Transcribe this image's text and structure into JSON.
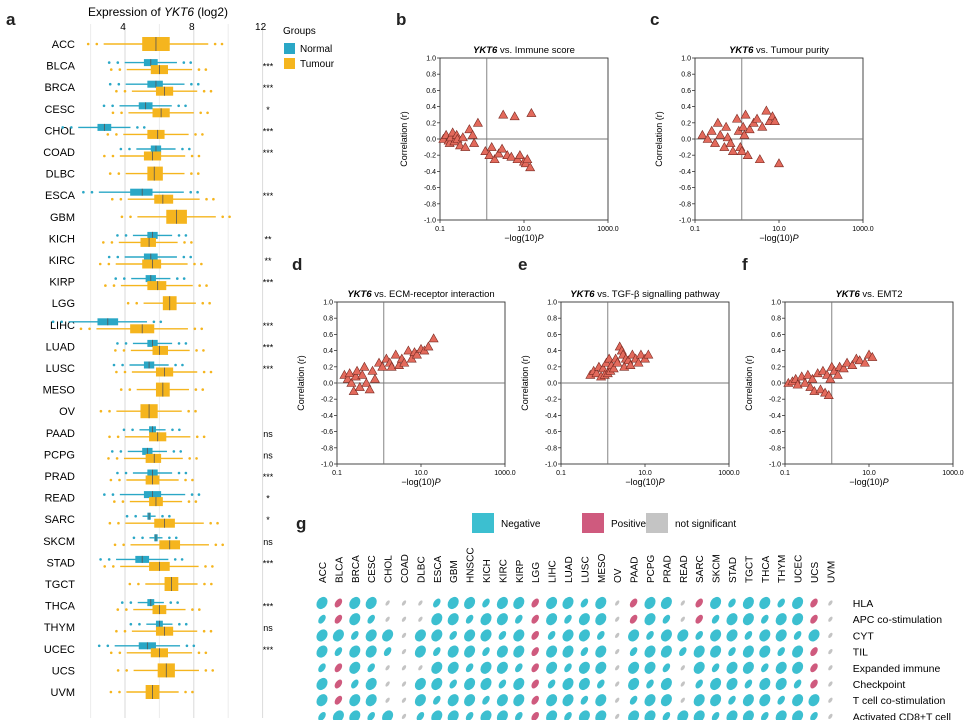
{
  "panel_labels": [
    "a",
    "b",
    "c",
    "d",
    "e",
    "f",
    "g"
  ],
  "panel_a": {
    "title_prefix": "Expression of ",
    "title_gene": "YKT6",
    "title_suffix": " (log2)",
    "x_ticks": [
      "4",
      "8",
      "12"
    ],
    "legend_title": "Groups",
    "legend_normal": "Normal",
    "legend_tumour": "Tumour",
    "colors": {
      "normal": "#2aa7c6",
      "tumour": "#f5b51e"
    },
    "rows": [
      {
        "name": "ACC",
        "normal": null,
        "tumour": [
          5.0,
          5.8,
          6.6
        ],
        "sig": ""
      },
      {
        "name": "BLCA",
        "normal": [
          5.1,
          5.5,
          5.9
        ],
        "tumour": [
          5.5,
          6.0,
          6.5
        ],
        "sig": "***"
      },
      {
        "name": "BRCA",
        "normal": [
          5.3,
          5.8,
          6.2
        ],
        "tumour": [
          5.8,
          6.3,
          6.8
        ],
        "sig": "***"
      },
      {
        "name": "CESC",
        "normal": [
          4.8,
          5.2,
          5.6
        ],
        "tumour": [
          5.6,
          6.1,
          6.6
        ],
        "sig": "*"
      },
      {
        "name": "CHOL",
        "normal": [
          2.4,
          2.8,
          3.2
        ],
        "tumour": [
          5.3,
          5.9,
          6.3
        ],
        "sig": "***"
      },
      {
        "name": "COAD",
        "normal": [
          5.5,
          5.8,
          6.1
        ],
        "tumour": [
          5.1,
          5.6,
          6.1
        ],
        "sig": "***"
      },
      {
        "name": "DLBC",
        "normal": null,
        "tumour": [
          5.3,
          5.7,
          6.2
        ],
        "sig": ""
      },
      {
        "name": "ESCA",
        "normal": [
          4.3,
          5.0,
          5.6
        ],
        "tumour": [
          5.7,
          6.2,
          6.8
        ],
        "sig": "***"
      },
      {
        "name": "GBM",
        "normal": null,
        "tumour": [
          6.4,
          7.0,
          7.6
        ],
        "sig": ""
      },
      {
        "name": "KICH",
        "normal": [
          5.3,
          5.6,
          5.9
        ],
        "tumour": [
          4.9,
          5.4,
          5.8
        ],
        "sig": "**"
      },
      {
        "name": "KIRC",
        "normal": [
          5.1,
          5.5,
          5.9
        ],
        "tumour": [
          5.0,
          5.6,
          6.1
        ],
        "sig": "**"
      },
      {
        "name": "KIRP",
        "normal": [
          5.2,
          5.5,
          5.8
        ],
        "tumour": [
          5.3,
          5.9,
          6.4
        ],
        "sig": "***"
      },
      {
        "name": "LGG",
        "normal": null,
        "tumour": [
          6.2,
          6.6,
          7.0
        ],
        "sig": ""
      },
      {
        "name": "LIHC",
        "normal": [
          2.4,
          3.0,
          3.6
        ],
        "tumour": [
          4.3,
          5.0,
          5.7
        ],
        "sig": "***"
      },
      {
        "name": "LUAD",
        "normal": [
          5.3,
          5.6,
          5.9
        ],
        "tumour": [
          5.6,
          6.0,
          6.5
        ],
        "sig": "***"
      },
      {
        "name": "LUSC",
        "normal": [
          5.1,
          5.4,
          5.7
        ],
        "tumour": [
          5.8,
          6.3,
          6.8
        ],
        "sig": "***"
      },
      {
        "name": "MESO",
        "normal": null,
        "tumour": [
          5.8,
          6.2,
          6.6
        ],
        "sig": ""
      },
      {
        "name": "OV",
        "normal": null,
        "tumour": [
          4.9,
          5.4,
          5.9
        ],
        "sig": ""
      },
      {
        "name": "PAAD",
        "normal": [
          5.4,
          5.6,
          5.8
        ],
        "tumour": [
          5.4,
          5.9,
          6.4
        ],
        "sig": "ns"
      },
      {
        "name": "PCPG",
        "normal": [
          5.0,
          5.3,
          5.6
        ],
        "tumour": [
          5.2,
          5.7,
          6.1
        ],
        "sig": "ns"
      },
      {
        "name": "PRAD",
        "normal": [
          5.3,
          5.6,
          5.9
        ],
        "tumour": [
          5.2,
          5.6,
          6.0
        ],
        "sig": "***"
      },
      {
        "name": "READ",
        "normal": [
          5.1,
          5.6,
          6.1
        ],
        "tumour": [
          5.4,
          5.8,
          6.2
        ],
        "sig": "*"
      },
      {
        "name": "SARC",
        "normal": [
          5.3,
          5.4,
          5.5
        ],
        "tumour": [
          5.7,
          6.3,
          6.9
        ],
        "sig": "*"
      },
      {
        "name": "SKCM",
        "normal": [
          5.7,
          5.8,
          5.9
        ],
        "tumour": [
          6.0,
          6.6,
          7.2
        ],
        "sig": "ns"
      },
      {
        "name": "STAD",
        "normal": [
          4.6,
          5.0,
          5.4
        ],
        "tumour": [
          5.4,
          6.0,
          6.6
        ],
        "sig": "***"
      },
      {
        "name": "TGCT",
        "normal": null,
        "tumour": [
          6.3,
          6.7,
          7.1
        ],
        "sig": ""
      },
      {
        "name": "THCA",
        "normal": [
          5.3,
          5.5,
          5.7
        ],
        "tumour": [
          5.6,
          6.0,
          6.4
        ],
        "sig": "***"
      },
      {
        "name": "THYM",
        "normal": [
          5.8,
          6.0,
          6.2
        ],
        "tumour": [
          5.8,
          6.3,
          6.8
        ],
        "sig": "ns"
      },
      {
        "name": "UCEC",
        "normal": [
          4.8,
          5.3,
          5.8
        ],
        "tumour": [
          5.5,
          6.0,
          6.5
        ],
        "sig": "***"
      },
      {
        "name": "UCS",
        "normal": null,
        "tumour": [
          5.9,
          6.4,
          6.9
        ],
        "sig": ""
      },
      {
        "name": "UVM",
        "normal": null,
        "tumour": [
          5.2,
          5.6,
          6.0
        ],
        "sig": ""
      }
    ]
  },
  "chart_data": [
    {
      "type": "scatter",
      "panel": "b",
      "title_gene": "YKT6",
      "title_rest": " vs. Immune score",
      "xlabel": "−log(10)P",
      "ylabel": "Correlation (r)",
      "x_log": true,
      "xlim": [
        0.1,
        1000
      ],
      "ylim": [
        -1,
        1
      ],
      "vline_x": 1.3,
      "hline_y": 0,
      "x": [
        0.12,
        0.14,
        0.16,
        0.17,
        0.18,
        0.2,
        0.22,
        0.25,
        0.26,
        0.3,
        0.35,
        0.4,
        0.5,
        0.6,
        0.65,
        0.8,
        1.2,
        1.5,
        1.7,
        2.0,
        2.5,
        3,
        3.2,
        4,
        5,
        6,
        7,
        8,
        10,
        11,
        12,
        14,
        15
      ],
      "y": [
        0,
        0.05,
        -0.02,
        -0.05,
        0.02,
        0.08,
        -0.03,
        0.05,
        0,
        -0.08,
        0.02,
        -0.1,
        0.12,
        0.05,
        -0.05,
        0.2,
        -0.15,
        -0.2,
        -0.1,
        -0.25,
        -0.18,
        -0.12,
        0.3,
        -0.2,
        -0.22,
        0.28,
        -0.25,
        -0.2,
        -0.28,
        -0.3,
        -0.25,
        -0.35,
        0.32
      ]
    },
    {
      "type": "scatter",
      "panel": "c",
      "title_gene": "YKT6",
      "title_rest": " vs. Tumour purity",
      "xlabel": "−log(10)P",
      "ylabel": "Correlation (r)",
      "x_log": true,
      "xlim": [
        0.1,
        1000
      ],
      "ylim": [
        -1,
        1
      ],
      "vline_x": 1.3,
      "hline_y": 0,
      "x": [
        0.15,
        0.2,
        0.25,
        0.3,
        0.35,
        0.4,
        0.5,
        0.55,
        0.6,
        0.7,
        0.8,
        1.0,
        1.1,
        1.2,
        1.3,
        1.4,
        1.5,
        1.6,
        1.8,
        2,
        2.5,
        3,
        3.5,
        4,
        5,
        6,
        7,
        8,
        10
      ],
      "y": [
        0.05,
        0,
        0.1,
        -0.05,
        0.2,
        0.05,
        -0.1,
        0.15,
        0.02,
        -0.05,
        -0.15,
        0.25,
        0.1,
        -0.1,
        -0.15,
        0.15,
        0.05,
        0.3,
        -0.2,
        0.12,
        0.2,
        0.25,
        -0.25,
        0.15,
        0.35,
        0.22,
        0.28,
        0.22,
        -0.3
      ]
    },
    {
      "type": "scatter",
      "panel": "d",
      "title_gene": "YKT6",
      "title_rest": " vs. ECM-receptor interaction",
      "xlabel": "−log(10)P",
      "ylabel": "Correlation (r)",
      "x_log": true,
      "xlim": [
        0.1,
        1000
      ],
      "ylim": [
        -1,
        1
      ],
      "vline_x": 1.3,
      "hline_y": 0,
      "x": [
        0.15,
        0.18,
        0.2,
        0.22,
        0.25,
        0.28,
        0.3,
        0.35,
        0.4,
        0.45,
        0.5,
        0.6,
        0.7,
        0.8,
        1.0,
        1.2,
        1.5,
        1.8,
        2,
        2.5,
        3,
        3.5,
        4,
        5,
        6,
        7,
        8,
        10,
        12,
        15,
        20
      ],
      "y": [
        0.1,
        0.05,
        0.12,
        0,
        -0.1,
        0.08,
        0.15,
        -0.05,
        0.1,
        0.2,
        0,
        -0.08,
        0.15,
        0.05,
        0.25,
        0.2,
        0.3,
        0.25,
        0.2,
        0.35,
        0.22,
        0.3,
        0.25,
        0.4,
        0.3,
        0.38,
        0.35,
        0.42,
        0.4,
        0.45,
        0.55
      ]
    },
    {
      "type": "scatter",
      "panel": "e",
      "title_gene": "YKT6",
      "title_rest": " vs. TGF-β signalling pathway",
      "xlabel": "−log(10)P",
      "ylabel": "Correlation (r)",
      "x_log": true,
      "xlim": [
        0.1,
        1000
      ],
      "ylim": [
        -1,
        1
      ],
      "vline_x": 1.3,
      "hline_y": 0,
      "x": [
        0.5,
        0.6,
        0.7,
        0.8,
        0.9,
        1.0,
        1.1,
        1.2,
        1.3,
        1.4,
        1.5,
        1.6,
        1.8,
        2,
        2.2,
        2.5,
        2.8,
        3,
        3.2,
        3.5,
        4,
        4.5,
        5,
        6,
        7,
        8,
        10,
        12
      ],
      "y": [
        0.1,
        0.15,
        0.12,
        0.2,
        0.08,
        0.18,
        0.1,
        0.25,
        0.12,
        0.3,
        0.15,
        0.22,
        0.18,
        0.3,
        0.25,
        0.45,
        0.4,
        0.35,
        0.2,
        0.3,
        0.28,
        0.22,
        0.35,
        0.3,
        0.25,
        0.35,
        0.3,
        0.35
      ]
    },
    {
      "type": "scatter",
      "panel": "f",
      "title_gene": "YKT6",
      "title_rest": " vs. EMT2",
      "xlabel": "−log(10)P",
      "ylabel": "Correlation (r)",
      "x_log": true,
      "xlim": [
        0.1,
        1000
      ],
      "ylim": [
        -1,
        1
      ],
      "vline_x": 1.3,
      "hline_y": 0,
      "x": [
        0.12,
        0.15,
        0.18,
        0.2,
        0.25,
        0.3,
        0.35,
        0.4,
        0.45,
        0.5,
        0.6,
        0.7,
        0.8,
        0.9,
        1.0,
        1.1,
        1.2,
        1.3,
        1.5,
        1.8,
        2,
        2.5,
        3,
        4,
        5,
        6,
        8,
        10,
        12
      ],
      "y": [
        0,
        0.02,
        0.05,
        -0.02,
        0.08,
        0,
        0.1,
        -0.05,
        0.05,
        -0.1,
        0.12,
        -0.08,
        0.15,
        -0.12,
        0.1,
        -0.15,
        0.05,
        0.2,
        0.15,
        0.1,
        0.2,
        0.18,
        0.25,
        0.22,
        0.3,
        0.28,
        0.25,
        0.35,
        0.32
      ]
    }
  ],
  "panel_g": {
    "legend": [
      {
        "label": "Negative",
        "color": "#3cbfd0"
      },
      {
        "label": "Positive",
        "color": "#cf5a7e"
      },
      {
        "label": "not significant",
        "color": "#c4c4c4"
      }
    ],
    "columns": [
      "ACC",
      "BLCA",
      "BRCA",
      "CESC",
      "CHOL",
      "COAD",
      "DLBC",
      "ESCA",
      "GBM",
      "HNSCC",
      "KICH",
      "KIRC",
      "KIRP",
      "LGG",
      "LIHC",
      "LUAD",
      "LUSC",
      "MESO",
      "OV",
      "PAAD",
      "PCPG",
      "PRAD",
      "READ",
      "SARC",
      "SKCM",
      "STAD",
      "TGCT",
      "THCA",
      "THYM",
      "UCEC",
      "UCS",
      "UVM"
    ],
    "rows": [
      "HLA",
      "APC co-stimulation",
      "CYT",
      "TIL",
      "Expanded immune",
      "Checkpoint",
      "T cell co-stimulation",
      "Activated CD8+T cell"
    ],
    "cells": [
      "NPNNsssNNNNNNPNNNNsPNNsPNNNNNNPs",
      "NPNNsssNNNNNNPNNNNsPNNsPNNNNNNPs",
      "NNNNNsNNNNNNNPNNNNsNNNNNNNNNNNNs",
      "NNNNNsNNNNNNNPNNNNsNNNNNNNNNNNPs",
      "NPNNsssNNNNNNPNNNNsNNNsNNNNNNNPs",
      "NPNNssNNNNNNNPNNNNsNNNsNNNNNNNPs",
      "NPNNssNNNNNNNPNNNNsNNNsNNNNNNNNs",
      "NNNNNsNNNNNNNPNNNNsNNNNNNNNNNNNs"
    ]
  }
}
